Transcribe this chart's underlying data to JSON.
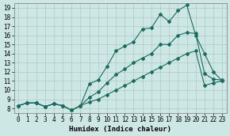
{
  "xlabel": "Humidex (Indice chaleur)",
  "ylabel": "",
  "background_color": "#cde8e4",
  "grid_color": "#b0c8c4",
  "line_color": "#1a6b60",
  "xlim": [
    -0.5,
    23.5
  ],
  "ylim": [
    7.5,
    19.5
  ],
  "xticks": [
    0,
    1,
    2,
    3,
    4,
    5,
    6,
    7,
    8,
    9,
    10,
    11,
    12,
    13,
    14,
    15,
    16,
    17,
    18,
    19,
    20,
    21,
    22,
    23
  ],
  "yticks": [
    8,
    9,
    10,
    11,
    12,
    13,
    14,
    15,
    16,
    17,
    18,
    19
  ],
  "line1_x": [
    0,
    1,
    2,
    3,
    4,
    5,
    6,
    7,
    8,
    9,
    10,
    11,
    12,
    13,
    14,
    15,
    16,
    17,
    18,
    19,
    20,
    21,
    22,
    23
  ],
  "line1_y": [
    8.3,
    8.6,
    8.6,
    8.2,
    8.5,
    8.3,
    7.8,
    8.3,
    10.7,
    11.1,
    12.6,
    14.3,
    14.8,
    15.3,
    16.7,
    16.8,
    18.3,
    17.5,
    18.7,
    19.3,
    16.0,
    14.0,
    12.0,
    11.0
  ],
  "line2_x": [
    0,
    1,
    2,
    3,
    4,
    5,
    6,
    7,
    8,
    9,
    10,
    11,
    12,
    13,
    14,
    15,
    16,
    17,
    18,
    19,
    20,
    21,
    22,
    23
  ],
  "line2_y": [
    8.3,
    8.6,
    8.6,
    8.2,
    8.5,
    8.3,
    7.8,
    8.3,
    9.2,
    9.8,
    10.8,
    11.7,
    12.3,
    13.0,
    13.5,
    14.0,
    15.0,
    15.0,
    16.0,
    16.3,
    16.2,
    11.8,
    11.2,
    11.1
  ],
  "line3_x": [
    0,
    1,
    2,
    3,
    4,
    5,
    6,
    7,
    8,
    9,
    10,
    11,
    12,
    13,
    14,
    15,
    16,
    17,
    18,
    19,
    20,
    21,
    22,
    23
  ],
  "line3_y": [
    8.3,
    8.6,
    8.6,
    8.2,
    8.5,
    8.3,
    7.8,
    8.3,
    8.7,
    9.0,
    9.5,
    10.0,
    10.5,
    11.0,
    11.5,
    12.0,
    12.5,
    13.0,
    13.5,
    14.0,
    14.3,
    10.5,
    10.8,
    11.0
  ],
  "marker": "D",
  "markersize": 2.0,
  "linewidth": 0.8,
  "tick_fontsize": 5.5,
  "xlabel_fontsize": 6.5,
  "figwidth": 2.9,
  "figheight": 1.72,
  "dpi": 100
}
